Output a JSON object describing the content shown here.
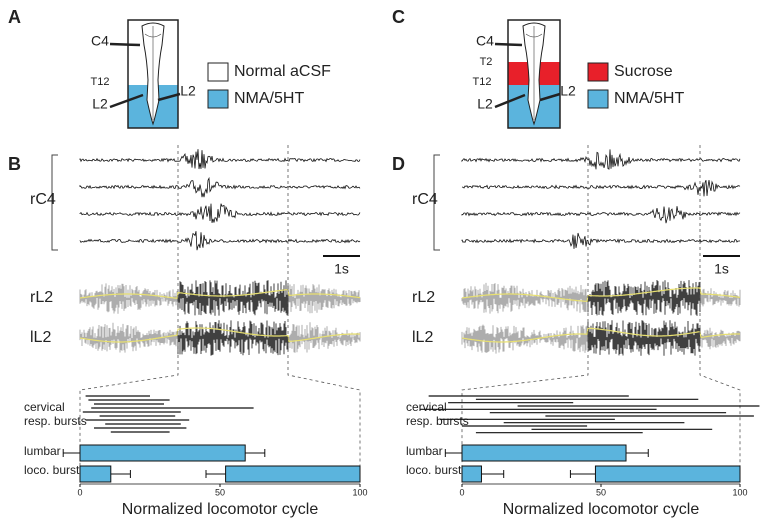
{
  "left": {
    "schematic_letter": "A",
    "legend": [
      {
        "label": "Normal aCSF",
        "color": "#ffffff"
      },
      {
        "label": "NMA/5HT",
        "color": "#5bb4dd"
      }
    ],
    "bath_colors": [
      "#ffffff",
      "#5bb4dd"
    ],
    "cord_labels": [
      "C4",
      "T12",
      "L2",
      "L2"
    ],
    "traces_letter": "B",
    "trace_labels": [
      "rC4",
      "rL2",
      "lL2"
    ],
    "scale_label": "1s",
    "chart": {
      "xlim": [
        0,
        100
      ],
      "xticks": [
        0,
        50,
        100
      ],
      "xlabel": "Normalized locomotor cycle",
      "row_labels": [
        "cervical",
        "resp. bursts",
        "lumbar",
        "loco. bursts"
      ],
      "color": "#5bb4dd",
      "cervical": [
        [
          2,
          25
        ],
        [
          3,
          32
        ],
        [
          5,
          30
        ],
        [
          4,
          62
        ],
        [
          1,
          36
        ],
        [
          7,
          34
        ],
        [
          2,
          39
        ],
        [
          9,
          36
        ],
        [
          5,
          38
        ],
        [
          11,
          32
        ]
      ],
      "lumbar": [
        {
          "start": 0,
          "end": 59,
          "start_error": 6,
          "end_error": 7
        }
      ],
      "loco": [
        {
          "start": 0,
          "end": 11,
          "end_error": 7
        },
        {
          "start": 52,
          "end": 100,
          "start_error": 7
        }
      ]
    }
  },
  "right": {
    "schematic_letter": "C",
    "legend": [
      {
        "label": "Sucrose",
        "color": "#e8202a"
      },
      {
        "label": "NMA/5HT",
        "color": "#5bb4dd"
      }
    ],
    "bath_colors": [
      "#ffffff",
      "#e8202a",
      "#5bb4dd"
    ],
    "cord_labels": [
      "C4",
      "T2",
      "T12",
      "L2",
      "L2"
    ],
    "traces_letter": "D",
    "trace_labels": [
      "rC4",
      "rL2",
      "lL2"
    ],
    "scale_label": "1s",
    "chart": {
      "xlim": [
        0,
        100
      ],
      "xticks": [
        0,
        50,
        100
      ],
      "xlabel": "Normalized locomotor cycle",
      "row_labels": [
        "cervical",
        "resp. bursts",
        "lumbar",
        "loco. bursts"
      ],
      "color": "#5bb4dd",
      "cervical": [
        [
          -12,
          60
        ],
        [
          5,
          85
        ],
        [
          -5,
          40
        ],
        [
          20,
          107
        ],
        [
          -15,
          70
        ],
        [
          10,
          95
        ],
        [
          30,
          105
        ],
        [
          -8,
          55
        ],
        [
          15,
          80
        ],
        [
          0,
          45
        ],
        [
          25,
          90
        ],
        [
          5,
          65
        ]
      ],
      "lumbar": [
        {
          "start": 0,
          "end": 59,
          "start_error": 6,
          "end_error": 8
        }
      ],
      "loco": [
        {
          "start": 0,
          "end": 7,
          "end_error": 8
        },
        {
          "start": 48,
          "end": 100,
          "start_error": 9
        }
      ]
    }
  }
}
